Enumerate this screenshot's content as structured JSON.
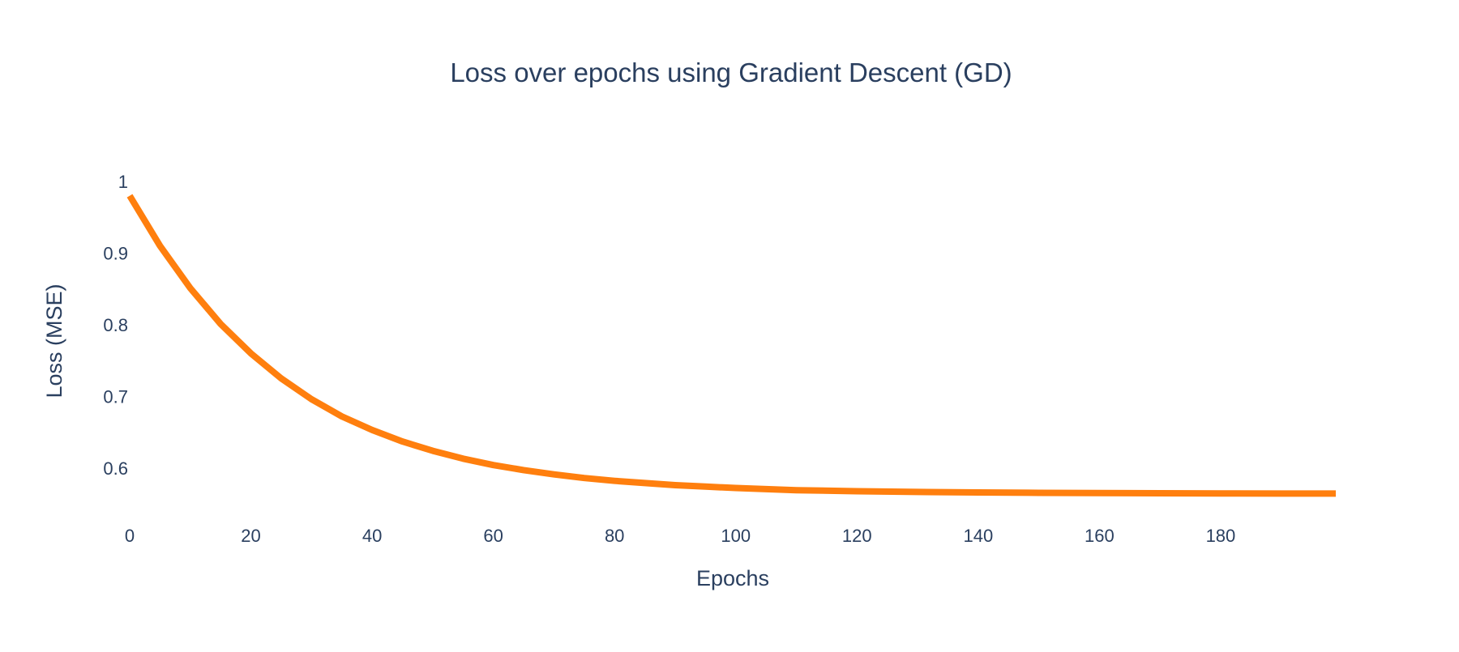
{
  "chart_data": {
    "type": "line",
    "title": "Loss over epochs using Gradient Descent (GD)",
    "xlabel": "Epochs",
    "ylabel": "Loss (MSE)",
    "xlim": [
      0,
      199
    ],
    "ylim": [
      0.55,
      1.0
    ],
    "x_ticks": [
      0,
      20,
      40,
      60,
      80,
      100,
      120,
      140,
      160,
      180
    ],
    "y_ticks": [
      0.6,
      0.7,
      0.8,
      0.9,
      1
    ],
    "grid": false,
    "legend": "none",
    "line_color": "#ff7f0e",
    "series": [
      {
        "x": [
          0,
          5,
          10,
          15,
          20,
          25,
          30,
          35,
          40,
          45,
          50,
          55,
          60,
          65,
          70,
          75,
          80,
          85,
          90,
          95,
          100,
          110,
          120,
          130,
          140,
          150,
          160,
          170,
          180,
          190,
          199
        ],
        "values": [
          0.98,
          0.91,
          0.851,
          0.801,
          0.76,
          0.725,
          0.696,
          0.672,
          0.653,
          0.637,
          0.624,
          0.613,
          0.604,
          0.597,
          0.591,
          0.586,
          0.582,
          0.579,
          0.576,
          0.574,
          0.572,
          0.569,
          0.5675,
          0.5665,
          0.5658,
          0.5653,
          0.565,
          0.5647,
          0.5645,
          0.5643,
          0.5642
        ]
      }
    ]
  }
}
